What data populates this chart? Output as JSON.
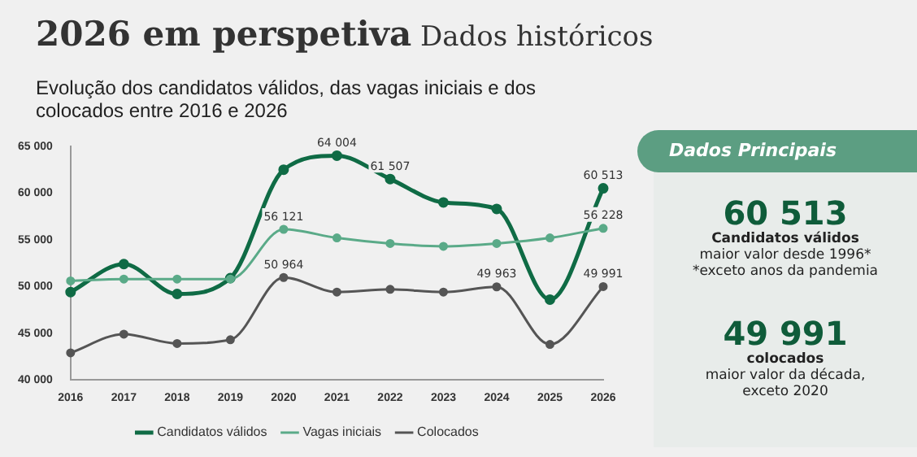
{
  "chart_data": [
    {
      "type": "line",
      "title": "2026 em perspetiva",
      "subtitle": "Dados históricos",
      "annotations": [
        "Evolução dos candidatos válidos, das vagas iniciais e dos colocados entre 2016 e 2026"
      ],
      "categories": [
        "2016",
        "2017",
        "2018",
        "2019",
        "2020",
        "2021",
        "2022",
        "2023",
        "2024",
        "2025",
        "2026"
      ],
      "series": [
        {
          "name": "Candidatos válidos",
          "color": "#0f6b45",
          "values": [
            49400,
            52400,
            49200,
            50900,
            62500,
            64004,
            61507,
            59000,
            58300,
            48600,
            60513
          ],
          "value_labels": [
            null,
            null,
            null,
            null,
            null,
            "64 004",
            "61 507",
            null,
            null,
            null,
            "60 513"
          ]
        },
        {
          "name": "Vagas iniciais",
          "color": "#5aaa88",
          "values": [
            50600,
            50800,
            50800,
            50800,
            56121,
            55200,
            54600,
            54300,
            54600,
            55200,
            56228
          ],
          "value_labels": [
            null,
            null,
            null,
            null,
            "56 121",
            null,
            null,
            null,
            null,
            null,
            "56 228"
          ]
        },
        {
          "name": "Colocados",
          "color": "#555555",
          "values": [
            42900,
            44900,
            43900,
            44300,
            50964,
            49400,
            49700,
            49400,
            49963,
            43800,
            49991
          ],
          "value_labels": [
            null,
            null,
            null,
            null,
            "50 964",
            null,
            null,
            null,
            "49 963",
            null,
            "49 991"
          ]
        }
      ],
      "ylim": [
        40000,
        65000
      ],
      "yticks": [
        {
          "value": 40000,
          "label": "40 000"
        },
        {
          "value": 45000,
          "label": "45 000"
        },
        {
          "value": 50000,
          "label": "50 000"
        },
        {
          "value": 55000,
          "label": "55 000"
        },
        {
          "value": 60000,
          "label": "60 000"
        },
        {
          "value": 65000,
          "label": "65 000"
        }
      ],
      "grid": false,
      "legend": "bottom",
      "marker": "circle",
      "line_style": "solid"
    },
    {
      "type": "other",
      "title": "Dados Principais",
      "annotations": [
        "60 513",
        "Candidatos válidos",
        "maior valor desde 1996*",
        "*exceto anos da pandemia",
        "49 991",
        "colocados",
        "maior valor da década, exceto 2020"
      ]
    }
  ]
}
